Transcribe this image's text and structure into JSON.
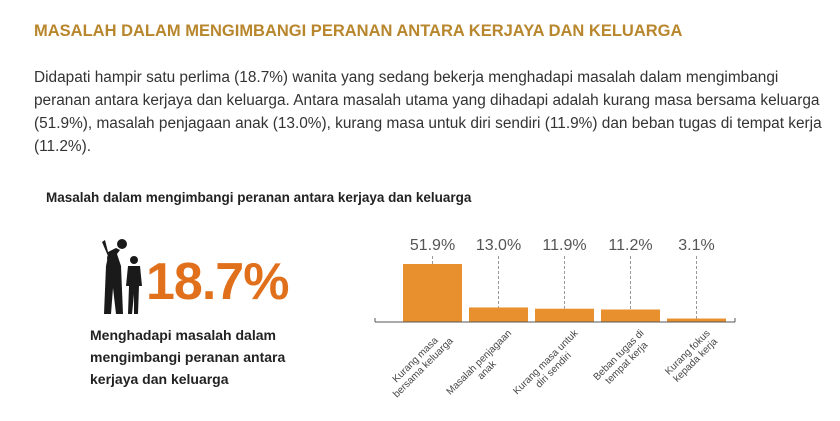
{
  "header": {
    "title": "MASALAH DALAM MENGIMBANGI PERANAN ANTARA KERJAYA DAN KELUARGA"
  },
  "paragraph": "Didapati hampir satu perlima (18.7%) wanita yang sedang bekerja menghadapi masalah dalam mengimbangi peranan antara kerjaya dan keluarga. Antara masalah utama yang dihadapi adalah kurang masa bersama keluarga (51.9%), masalah penjagaan anak (13.0%), kurang masa untuk diri sendiri (11.9%) dan beban tugas di tempat kerja (11.2%).",
  "section_title": "Masalah dalam mengimbangi peranan antara kerjaya dan keluarga",
  "highlight": {
    "value": "18.7%",
    "caption": "Menghadapi masalah dalam\nmengimbangi peranan antara\nkerjaya dan keluarga"
  },
  "chart_data": {
    "type": "bar",
    "categories": [
      "Kurang masa\nbersama keluarga",
      "Masalah penjagaan\nanak",
      "Kurang masa untuk\ndiri sendiri",
      "Beban tugas di\ntempat kerja",
      "Kurang fokus\nkepada kerja"
    ],
    "values": [
      51.9,
      13.0,
      11.9,
      11.2,
      3.1
    ],
    "value_labels": [
      "51.9%",
      "13.0%",
      "11.9%",
      "11.2%",
      "3.1%"
    ],
    "color": "#e8902e"
  }
}
